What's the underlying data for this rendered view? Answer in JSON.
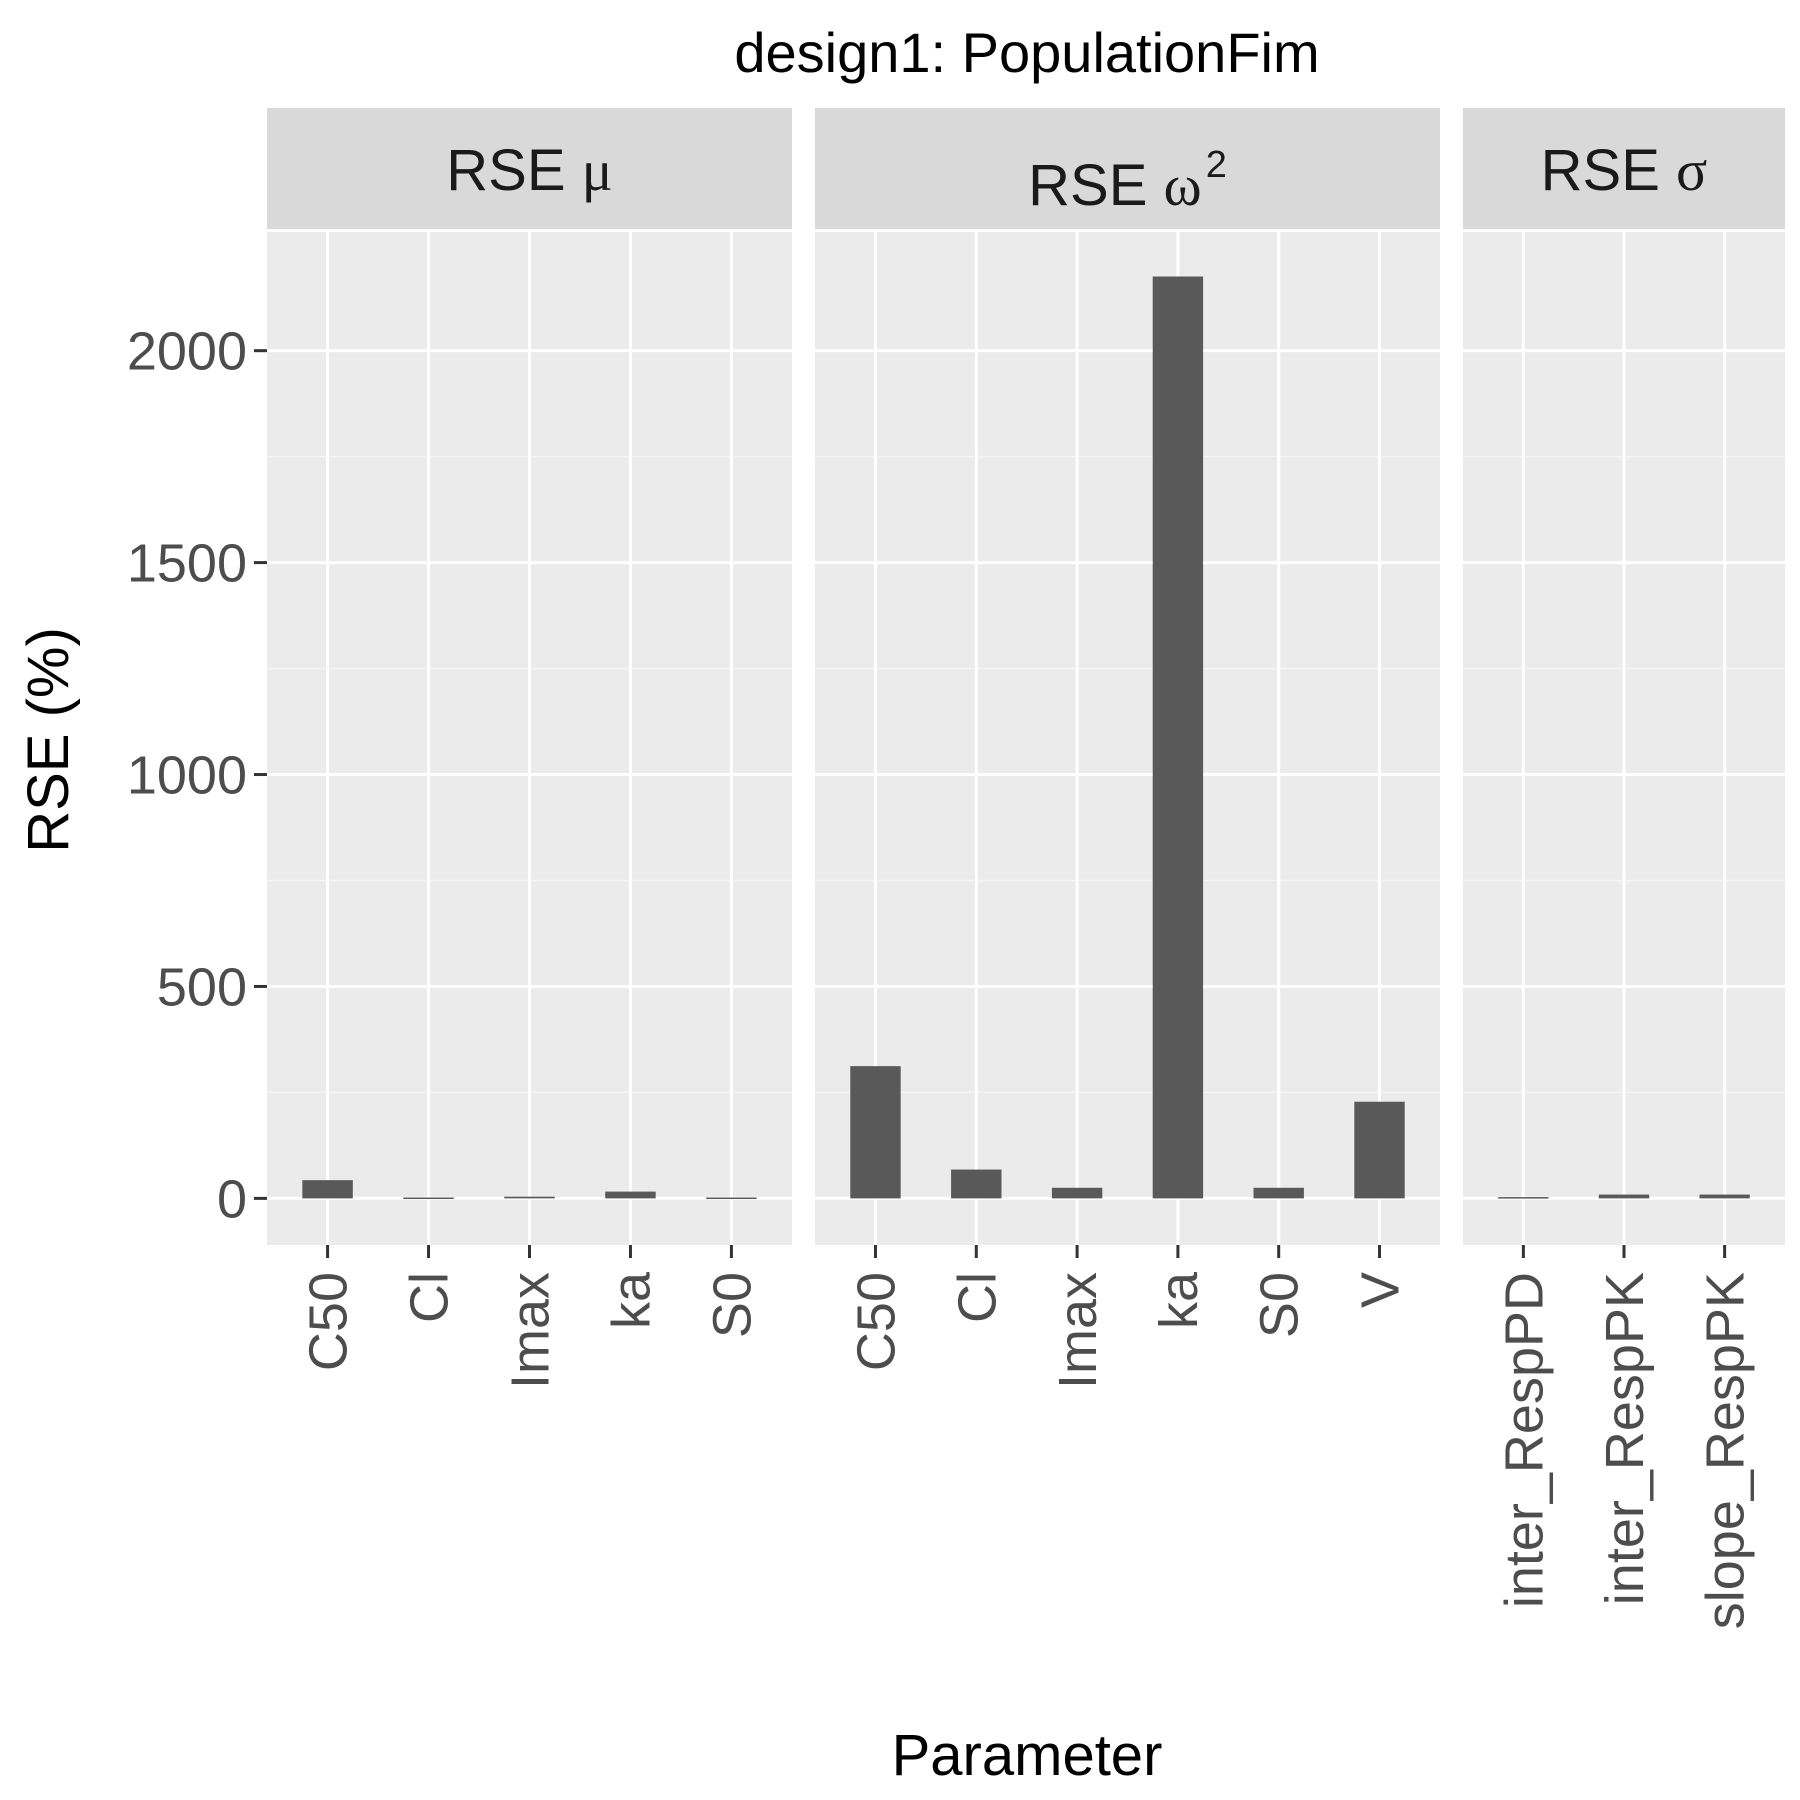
{
  "chart_data": {
    "type": "bar",
    "title": "design1: PopulationFim",
    "xlabel": "Parameter",
    "ylabel": "RSE (%)",
    "ylim": [
      -110,
      2280
    ],
    "yticks": [
      0,
      500,
      1000,
      1500,
      2000
    ],
    "grid": true,
    "bar_color": "#595959",
    "panel_background": "#ebebeb",
    "strip_background": "#d9d9d9",
    "facets": [
      {
        "strip_label": "RSE",
        "strip_symbol": "μ",
        "strip_superscript": "",
        "categories": [
          "C50",
          "Cl",
          "Imax",
          "ka",
          "S0"
        ],
        "values": [
          43,
          2,
          4,
          16,
          2
        ]
      },
      {
        "strip_label": "RSE",
        "strip_symbol": "ω",
        "strip_superscript": "2",
        "categories": [
          "C50",
          "Cl",
          "Imax",
          "ka",
          "S0",
          "V"
        ],
        "values": [
          312,
          68,
          25,
          2175,
          25,
          228
        ]
      },
      {
        "strip_label": "RSE",
        "strip_symbol": "σ",
        "strip_superscript": "",
        "categories": [
          "inter_RespPD",
          "inter_RespPK",
          "slope_RespPK"
        ],
        "values": [
          3,
          9,
          9
        ]
      }
    ]
  }
}
